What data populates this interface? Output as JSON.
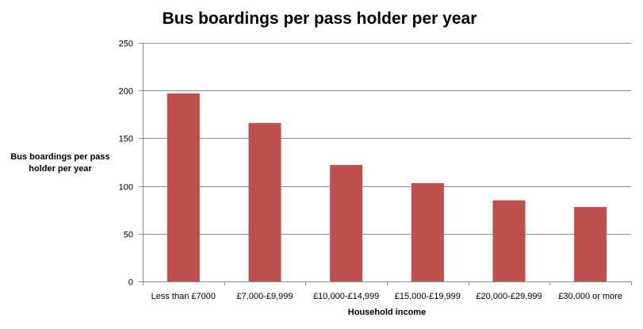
{
  "chart_data": {
    "type": "bar",
    "title": "Bus boardings per pass holder per year",
    "xlabel": "Household  income",
    "ylabel_lines": [
      "Bus boardings  per pass",
      "holder per year"
    ],
    "categories": [
      "Less than £7000",
      "£7,000-£9,999",
      "£10,000-£14,999",
      "£15,000-£19,999",
      "£20,000-£29,999",
      "£30,000 or more"
    ],
    "values": [
      197,
      166,
      122,
      103,
      85,
      78
    ],
    "ylim": [
      0,
      250
    ],
    "yticks": [
      0,
      50,
      100,
      150,
      200,
      250
    ],
    "grid": true,
    "legend": "none",
    "bar_color": "#c0504d"
  }
}
